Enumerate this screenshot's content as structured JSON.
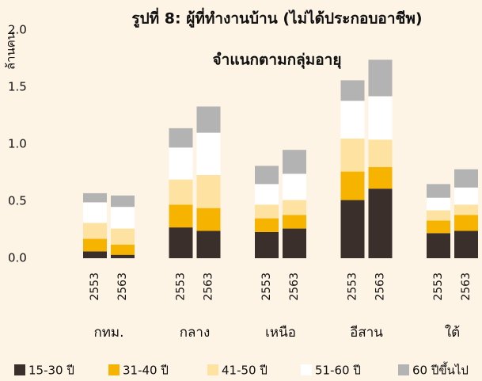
{
  "chart_data": {
    "type": "stacked_bar",
    "title": "รูปที่ 8: ผู้ที่ทำงานบ้าน (ไม่ได้ประกอบอาชีพ)",
    "subtitle": "จำแนกตามกลุ่มอายุ",
    "y_label": "ล้านคน",
    "categories": [
      "2553",
      "2563",
      "2553",
      "2563",
      "2553",
      "2563",
      "2553",
      "2563",
      "2553",
      "2563"
    ],
    "groups": [
      "กทม.",
      "กลาง",
      "เหนือ",
      "อีสาน",
      "ใต้"
    ],
    "series": [
      {
        "name": "15-30 ปี",
        "color": "#3b2f2b",
        "values": [
          0.06,
          0.03,
          0.27,
          0.24,
          0.23,
          0.26,
          0.51,
          0.61,
          0.22,
          0.24
        ]
      },
      {
        "name": "31-40 ปี",
        "color": "#f6b400",
        "values": [
          0.11,
          0.09,
          0.2,
          0.2,
          0.12,
          0.12,
          0.25,
          0.19,
          0.11,
          0.14
        ]
      },
      {
        "name": "41-50 ปี",
        "color": "#fde2a2",
        "values": [
          0.14,
          0.14,
          0.22,
          0.29,
          0.12,
          0.13,
          0.29,
          0.24,
          0.09,
          0.09
        ]
      },
      {
        "name": "51-60 ปี",
        "color": "#ffffff",
        "values": [
          0.18,
          0.19,
          0.28,
          0.37,
          0.18,
          0.23,
          0.33,
          0.38,
          0.11,
          0.15
        ]
      },
      {
        "name": "60 ปีขึ้นไป",
        "color": "#b3b3b3",
        "values": [
          0.08,
          0.1,
          0.17,
          0.23,
          0.16,
          0.21,
          0.18,
          0.32,
          0.12,
          0.16
        ]
      }
    ],
    "ylim": [
      0,
      2
    ],
    "yticks": [
      {
        "value": 0,
        "label": "0.0"
      },
      0.5,
      {
        "value": 1,
        "label": "1.0"
      },
      1.5,
      {
        "value": 2,
        "label": "2.0"
      }
    ],
    "legend": "bottom"
  }
}
